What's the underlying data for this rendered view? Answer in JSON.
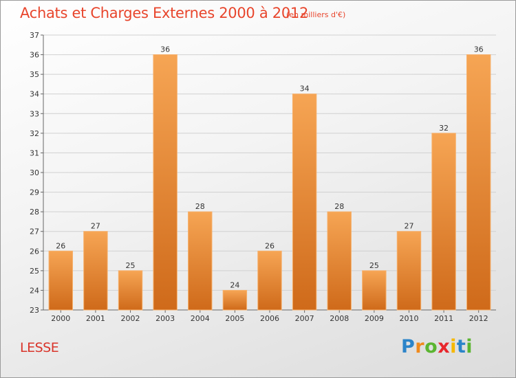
{
  "title": "Achats et Charges Externes 2000 à 2012",
  "subtitle": "(en milliers d'€)",
  "commune": "LESSE",
  "logo": {
    "letters": [
      "P",
      "r",
      "o",
      "x",
      "i",
      "t",
      "i"
    ],
    "colors": [
      "#2b84c9",
      "#f08a1c",
      "#5bb531",
      "#e8272c",
      "#f6b800",
      "#2b84c9",
      "#5bb531"
    ]
  },
  "colors": {
    "bar": "#f08c30",
    "bar_dark": "#c8651a",
    "title": "#e8452c"
  },
  "chart_data": {
    "type": "bar",
    "categories": [
      "2000",
      "2001",
      "2002",
      "2003",
      "2004",
      "2005",
      "2006",
      "2007",
      "2008",
      "2009",
      "2010",
      "2011",
      "2012"
    ],
    "values": [
      26,
      27,
      25,
      36,
      28,
      24,
      26,
      34,
      28,
      25,
      27,
      32,
      36
    ],
    "title": "Achats et Charges Externes 2000 à 2012",
    "ylim": [
      23,
      37
    ],
    "yticks": [
      23,
      24,
      25,
      26,
      27,
      28,
      29,
      30,
      31,
      32,
      33,
      34,
      35,
      36,
      37
    ],
    "grid": true
  }
}
